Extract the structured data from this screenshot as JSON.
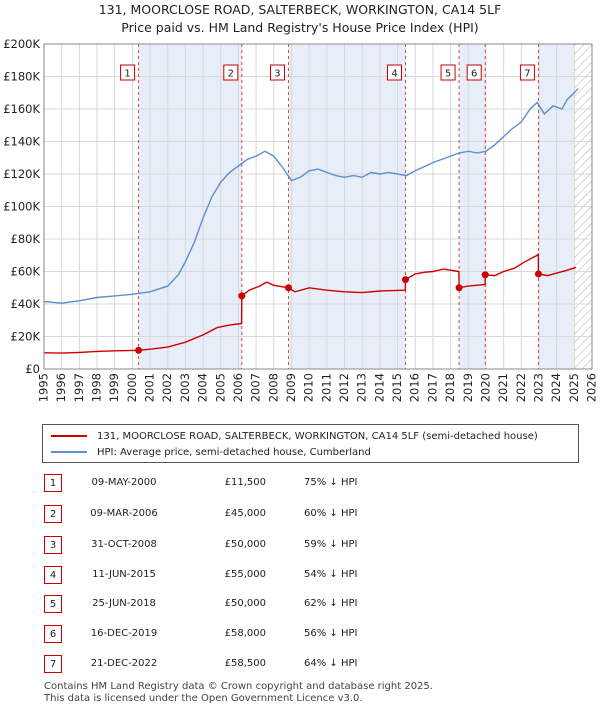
{
  "title": "131, MOORCLOSE ROAD, SALTERBECK, WORKINGTON, CA14 5LF",
  "subtitle": "Price paid vs. HM Land Registry's House Price Index (HPI)",
  "legend": {
    "property": "131, MOORCLOSE ROAD, SALTERBECK, WORKINGTON, CA14 5LF (semi-detached house)",
    "hpi": "HPI: Average price, semi-detached house, Cumberland"
  },
  "colors": {
    "property": "#cc0000",
    "hpi": "#5b8fd0",
    "shade": "#e8eef8",
    "marker_border": "#cc0000"
  },
  "transactions": [
    {
      "num": "1",
      "date": "09-MAY-2000",
      "price": "£11,500",
      "pct": "75% ↓ HPI"
    },
    {
      "num": "2",
      "date": "09-MAR-2006",
      "price": "£45,000",
      "pct": "60% ↓ HPI"
    },
    {
      "num": "3",
      "date": "31-OCT-2008",
      "price": "£50,000",
      "pct": "59% ↓ HPI"
    },
    {
      "num": "4",
      "date": "11-JUN-2015",
      "price": "£55,000",
      "pct": "54% ↓ HPI"
    },
    {
      "num": "5",
      "date": "25-JUN-2018",
      "price": "£50,000",
      "pct": "62% ↓ HPI"
    },
    {
      "num": "6",
      "date": "16-DEC-2019",
      "price": "£58,000",
      "pct": "56% ↓ HPI"
    },
    {
      "num": "7",
      "date": "21-DEC-2022",
      "price": "£58,500",
      "pct": "64% ↓ HPI"
    }
  ],
  "footer": {
    "line1": "Contains HM Land Registry data © Crown copyright and database right 2025.",
    "line2": "This data is licensed under the Open Government Licence v3.0."
  },
  "chart_data": {
    "type": "line",
    "xlim": [
      1995,
      2026
    ],
    "ylim": [
      0,
      200000
    ],
    "x_ticks": [
      "1995",
      "1996",
      "1997",
      "1998",
      "1999",
      "2000",
      "2001",
      "2002",
      "2003",
      "2004",
      "2005",
      "2006",
      "2007",
      "2008",
      "2009",
      "2010",
      "2011",
      "2012",
      "2013",
      "2014",
      "2015",
      "2016",
      "2017",
      "2018",
      "2019",
      "2020",
      "2021",
      "2022",
      "2023",
      "2024",
      "2025",
      "2026"
    ],
    "y_ticks": [
      {
        "value": 0,
        "label": "£0"
      },
      {
        "value": 20000,
        "label": "£20K"
      },
      {
        "value": 40000,
        "label": "£40K"
      },
      {
        "value": 60000,
        "label": "£60K"
      },
      {
        "value": 80000,
        "label": "£80K"
      },
      {
        "value": 100000,
        "label": "£100K"
      },
      {
        "value": 120000,
        "label": "£120K"
      },
      {
        "value": 140000,
        "label": "£140K"
      },
      {
        "value": 160000,
        "label": "£160K"
      },
      {
        "value": 180000,
        "label": "£180K"
      },
      {
        "value": 200000,
        "label": "£200K"
      }
    ],
    "grid": true,
    "hatched_future_from": 2025.0,
    "series": [
      {
        "name": "131, MOORCLOSE ROAD, SALTERBECK, WORKINGTON, CA14 5LF (semi-detached house)",
        "color": "#cc0000",
        "points": [
          [
            1995.0,
            10000
          ],
          [
            1996.0,
            9800
          ],
          [
            1997.0,
            10200
          ],
          [
            1998.0,
            10800
          ],
          [
            1999.0,
            11200
          ],
          [
            2000.35,
            11500
          ],
          [
            2001.0,
            12200
          ],
          [
            2002.0,
            13500
          ],
          [
            2003.0,
            16500
          ],
          [
            2004.0,
            21000
          ],
          [
            2004.8,
            25500
          ],
          [
            2005.5,
            27000
          ],
          [
            2006.18,
            28000
          ],
          [
            2006.19,
            45000
          ],
          [
            2006.6,
            48500
          ],
          [
            2007.2,
            51000
          ],
          [
            2007.6,
            53500
          ],
          [
            2008.0,
            51500
          ],
          [
            2008.83,
            50000
          ],
          [
            2009.2,
            47500
          ],
          [
            2010.0,
            50000
          ],
          [
            2011.0,
            48500
          ],
          [
            2012.0,
            47500
          ],
          [
            2013.0,
            47000
          ],
          [
            2014.0,
            48000
          ],
          [
            2015.44,
            48500
          ],
          [
            2015.45,
            55000
          ],
          [
            2016.0,
            58500
          ],
          [
            2016.5,
            59500
          ],
          [
            2017.0,
            60000
          ],
          [
            2017.6,
            61500
          ],
          [
            2018.47,
            60000
          ],
          [
            2018.48,
            50000
          ],
          [
            2019.0,
            51000
          ],
          [
            2019.95,
            52000
          ],
          [
            2019.96,
            58000
          ],
          [
            2020.5,
            57500
          ],
          [
            2021.0,
            60000
          ],
          [
            2021.6,
            62000
          ],
          [
            2022.2,
            66000
          ],
          [
            2022.9,
            70000
          ],
          [
            2022.96,
            70500
          ],
          [
            2022.97,
            58500
          ],
          [
            2023.5,
            57500
          ],
          [
            2024.0,
            59000
          ],
          [
            2024.5,
            60500
          ],
          [
            2025.1,
            62500
          ]
        ]
      },
      {
        "name": "HPI: Average price, semi-detached house, Cumberland",
        "color": "#5b8fd0",
        "points": [
          [
            1995.0,
            41500
          ],
          [
            1996.0,
            40500
          ],
          [
            1997.0,
            42000
          ],
          [
            1998.0,
            44000
          ],
          [
            1999.0,
            45000
          ],
          [
            2000.0,
            46000
          ],
          [
            2001.0,
            47500
          ],
          [
            2002.0,
            51000
          ],
          [
            2002.6,
            58000
          ],
          [
            2003.0,
            66000
          ],
          [
            2003.5,
            78000
          ],
          [
            2004.0,
            93000
          ],
          [
            2004.5,
            106000
          ],
          [
            2005.0,
            115000
          ],
          [
            2005.5,
            121000
          ],
          [
            2006.0,
            125000
          ],
          [
            2006.5,
            129000
          ],
          [
            2007.0,
            131000
          ],
          [
            2007.5,
            134000
          ],
          [
            2008.0,
            131000
          ],
          [
            2008.5,
            124000
          ],
          [
            2009.0,
            116000
          ],
          [
            2009.5,
            118000
          ],
          [
            2010.0,
            122000
          ],
          [
            2010.5,
            123000
          ],
          [
            2011.0,
            121000
          ],
          [
            2011.5,
            119000
          ],
          [
            2012.0,
            118000
          ],
          [
            2012.5,
            119000
          ],
          [
            2013.0,
            118000
          ],
          [
            2013.5,
            121000
          ],
          [
            2014.0,
            120000
          ],
          [
            2014.5,
            121000
          ],
          [
            2015.0,
            120000
          ],
          [
            2015.5,
            119000
          ],
          [
            2016.0,
            122000
          ],
          [
            2016.5,
            124500
          ],
          [
            2017.0,
            127000
          ],
          [
            2017.5,
            129000
          ],
          [
            2018.0,
            131000
          ],
          [
            2018.5,
            133000
          ],
          [
            2019.0,
            134000
          ],
          [
            2019.5,
            133000
          ],
          [
            2020.0,
            134000
          ],
          [
            2020.5,
            138000
          ],
          [
            2021.0,
            143000
          ],
          [
            2021.5,
            148000
          ],
          [
            2022.0,
            152000
          ],
          [
            2022.5,
            160000
          ],
          [
            2022.9,
            164000
          ],
          [
            2023.3,
            157000
          ],
          [
            2023.8,
            162000
          ],
          [
            2024.3,
            160000
          ],
          [
            2024.6,
            166000
          ],
          [
            2025.0,
            170000
          ],
          [
            2025.2,
            172500
          ]
        ]
      }
    ],
    "sales": [
      {
        "label": "1",
        "x": 2000.35,
        "y": 11500
      },
      {
        "label": "2",
        "x": 2006.19,
        "y": 45000
      },
      {
        "label": "3",
        "x": 2008.83,
        "y": 50000
      },
      {
        "label": "4",
        "x": 2015.45,
        "y": 55000
      },
      {
        "label": "5",
        "x": 2018.48,
        "y": 50000
      },
      {
        "label": "6",
        "x": 2019.96,
        "y": 58000
      },
      {
        "label": "7",
        "x": 2022.97,
        "y": 58500
      }
    ]
  }
}
